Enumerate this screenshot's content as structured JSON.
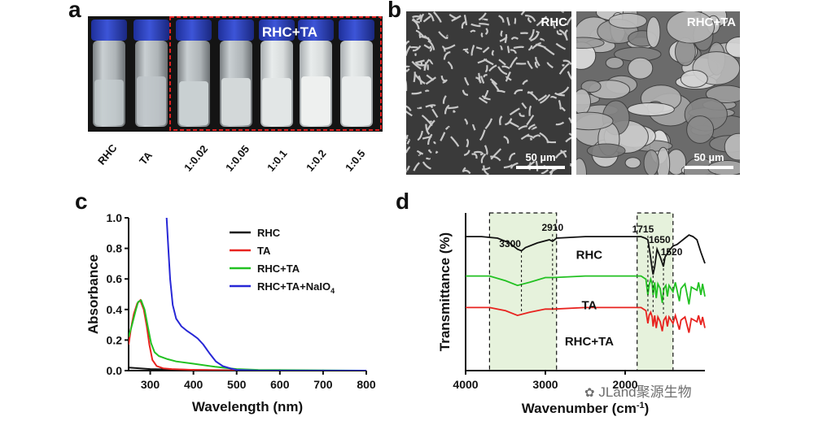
{
  "panels": {
    "a": {
      "letter": "a",
      "group_label": "RHC+TA",
      "vial_labels": [
        "RHC",
        "TA",
        "1:0.02",
        "1:0.05",
        "1:0.1",
        "1:0.2",
        "1:0.5"
      ]
    },
    "b": {
      "letter": "b",
      "images": [
        {
          "label": "RHC",
          "scale_bar": "50 µm"
        },
        {
          "label": "RHC+TA",
          "scale_bar": "50 µm"
        }
      ]
    },
    "c": {
      "letter": "c"
    },
    "d": {
      "letter": "d"
    }
  },
  "watermark": "JLand聚源生物",
  "chart_data": [
    {
      "type": "line",
      "panel": "c",
      "xlabel": "Wavelength (nm)",
      "ylabel": "Absorbance",
      "xlim": [
        250,
        800
      ],
      "ylim": [
        0,
        1.0
      ],
      "x_ticks": [
        "300",
        "400",
        "500",
        "600",
        "700",
        "800"
      ],
      "y_ticks": [
        "0.0",
        "0.2",
        "0.4",
        "0.6",
        "0.8",
        "1.0"
      ],
      "legend_position": "top-right",
      "series": [
        {
          "name": "RHC",
          "color": "#111111",
          "points": [
            [
              250,
              0.02
            ],
            [
              300,
              0.01
            ],
            [
              400,
              0.005
            ],
            [
              600,
              0.0
            ],
            [
              800,
              0.0
            ]
          ]
        },
        {
          "name": "TA",
          "color": "#e8231f",
          "points": [
            [
              250,
              0.17
            ],
            [
              255,
              0.27
            ],
            [
              262,
              0.37
            ],
            [
              270,
              0.44
            ],
            [
              277,
              0.46
            ],
            [
              285,
              0.4
            ],
            [
              292,
              0.29
            ],
            [
              298,
              0.17
            ],
            [
              305,
              0.07
            ],
            [
              315,
              0.03
            ],
            [
              330,
              0.015
            ],
            [
              350,
              0.01
            ],
            [
              400,
              0.005
            ],
            [
              500,
              0.0
            ],
            [
              800,
              0.0
            ]
          ]
        },
        {
          "name": "RHC+TA",
          "color": "#22c122",
          "points": [
            [
              250,
              0.22
            ],
            [
              258,
              0.3
            ],
            [
              266,
              0.39
            ],
            [
              272,
              0.45
            ],
            [
              279,
              0.46
            ],
            [
              287,
              0.4
            ],
            [
              295,
              0.28
            ],
            [
              302,
              0.18
            ],
            [
              310,
              0.12
            ],
            [
              320,
              0.095
            ],
            [
              340,
              0.075
            ],
            [
              360,
              0.06
            ],
            [
              400,
              0.045
            ],
            [
              450,
              0.025
            ],
            [
              500,
              0.01
            ],
            [
              550,
              0.005
            ],
            [
              800,
              0.0
            ]
          ]
        },
        {
          "name": "RHC+TA+NaIO4",
          "legend_text": "RHC+TA+NaIO",
          "legend_subscript": "4",
          "color": "#2727d6",
          "points": [
            [
              338,
              1.0
            ],
            [
              342,
              0.8
            ],
            [
              346,
              0.6
            ],
            [
              352,
              0.43
            ],
            [
              360,
              0.34
            ],
            [
              372,
              0.29
            ],
            [
              385,
              0.26
            ],
            [
              398,
              0.235
            ],
            [
              410,
              0.21
            ],
            [
              423,
              0.17
            ],
            [
              438,
              0.11
            ],
            [
              452,
              0.06
            ],
            [
              468,
              0.03
            ],
            [
              485,
              0.015
            ],
            [
              500,
              0.005
            ],
            [
              550,
              0.0
            ],
            [
              800,
              0.0
            ]
          ]
        }
      ]
    },
    {
      "type": "line",
      "panel": "d",
      "xlabel": "Wavenumber (cm",
      "xlabel_superscript": "-1",
      "xlabel_close": ")",
      "ylabel": "Transmittance (%)",
      "xlim": [
        4000,
        1000
      ],
      "x_ticks": [
        "4000",
        "3000",
        "2000"
      ],
      "y_ticks_shown": false,
      "shaded_bands": [
        [
          3700,
          2860
        ],
        [
          1850,
          1400
        ]
      ],
      "peak_labels": [
        {
          "text": "3300",
          "x": 3300
        },
        {
          "text": "2910",
          "x": 2910
        },
        {
          "text": "1715",
          "x": 1715
        },
        {
          "text": "1650",
          "x": 1650
        },
        {
          "text": "1520",
          "x": 1520
        }
      ],
      "series": [
        {
          "name": "RHC",
          "color": "#111111",
          "points": [
            [
              4000,
              85
            ],
            [
              3800,
              85
            ],
            [
              3600,
              84
            ],
            [
              3450,
              81
            ],
            [
              3350,
              77
            ],
            [
              3300,
              76
            ],
            [
              3250,
              78
            ],
            [
              3100,
              81
            ],
            [
              2950,
              83
            ],
            [
              2910,
              82
            ],
            [
              2860,
              84
            ],
            [
              2500,
              85
            ],
            [
              2000,
              85
            ],
            [
              1800,
              85
            ],
            [
              1750,
              84
            ],
            [
              1715,
              83
            ],
            [
              1690,
              75
            ],
            [
              1660,
              64
            ],
            [
              1650,
              61
            ],
            [
              1630,
              66
            ],
            [
              1600,
              77
            ],
            [
              1560,
              72
            ],
            [
              1540,
              69
            ],
            [
              1520,
              66
            ],
            [
              1500,
              72
            ],
            [
              1450,
              76
            ],
            [
              1400,
              79
            ],
            [
              1350,
              80
            ],
            [
              1300,
              82
            ],
            [
              1250,
              84
            ],
            [
              1200,
              86
            ],
            [
              1150,
              85
            ],
            [
              1100,
              83
            ],
            [
              1050,
              75
            ],
            [
              1000,
              68
            ]
          ]
        },
        {
          "name": "TA",
          "color": "#22c122",
          "points": [
            [
              4000,
              60
            ],
            [
              3700,
              60
            ],
            [
              3500,
              57
            ],
            [
              3350,
              54
            ],
            [
              3200,
              56
            ],
            [
              3000,
              59
            ],
            [
              2900,
              59
            ],
            [
              2500,
              60
            ],
            [
              2000,
              60
            ],
            [
              1800,
              60
            ],
            [
              1740,
              58
            ],
            [
              1715,
              48
            ],
            [
              1700,
              54
            ],
            [
              1680,
              58
            ],
            [
              1660,
              55
            ],
            [
              1650,
              48
            ],
            [
              1630,
              56
            ],
            [
              1610,
              46
            ],
            [
              1590,
              55
            ],
            [
              1560,
              52
            ],
            [
              1535,
              43
            ],
            [
              1515,
              52
            ],
            [
              1490,
              54
            ],
            [
              1470,
              47
            ],
            [
              1450,
              54
            ],
            [
              1400,
              50
            ],
            [
              1370,
              56
            ],
            [
              1320,
              44
            ],
            [
              1300,
              52
            ],
            [
              1250,
              55
            ],
            [
              1200,
              42
            ],
            [
              1170,
              53
            ],
            [
              1100,
              51
            ],
            [
              1080,
              56
            ],
            [
              1050,
              48
            ],
            [
              1030,
              55
            ],
            [
              1000,
              47
            ]
          ]
        },
        {
          "name": "RHC+TA",
          "color": "#e8231f",
          "points": [
            [
              4000,
              40
            ],
            [
              3700,
              40
            ],
            [
              3500,
              38
            ],
            [
              3350,
              35
            ],
            [
              3200,
              37
            ],
            [
              3000,
              39
            ],
            [
              2900,
              39
            ],
            [
              2500,
              40
            ],
            [
              2000,
              40
            ],
            [
              1800,
              40
            ],
            [
              1740,
              38
            ],
            [
              1715,
              30
            ],
            [
              1700,
              35
            ],
            [
              1680,
              37
            ],
            [
              1660,
              34
            ],
            [
              1650,
              28
            ],
            [
              1630,
              35
            ],
            [
              1610,
              27
            ],
            [
              1590,
              34
            ],
            [
              1560,
              31
            ],
            [
              1535,
              25
            ],
            [
              1515,
              32
            ],
            [
              1490,
              34
            ],
            [
              1470,
              28
            ],
            [
              1450,
              34
            ],
            [
              1400,
              30
            ],
            [
              1370,
              35
            ],
            [
              1320,
              26
            ],
            [
              1300,
              32
            ],
            [
              1250,
              34
            ],
            [
              1200,
              24
            ],
            [
              1170,
              33
            ],
            [
              1100,
              31
            ],
            [
              1080,
              35
            ],
            [
              1050,
              29
            ],
            [
              1030,
              34
            ],
            [
              1000,
              27
            ]
          ]
        }
      ],
      "curve_labels": [
        "RHC",
        "TA",
        "RHC+TA"
      ]
    }
  ]
}
